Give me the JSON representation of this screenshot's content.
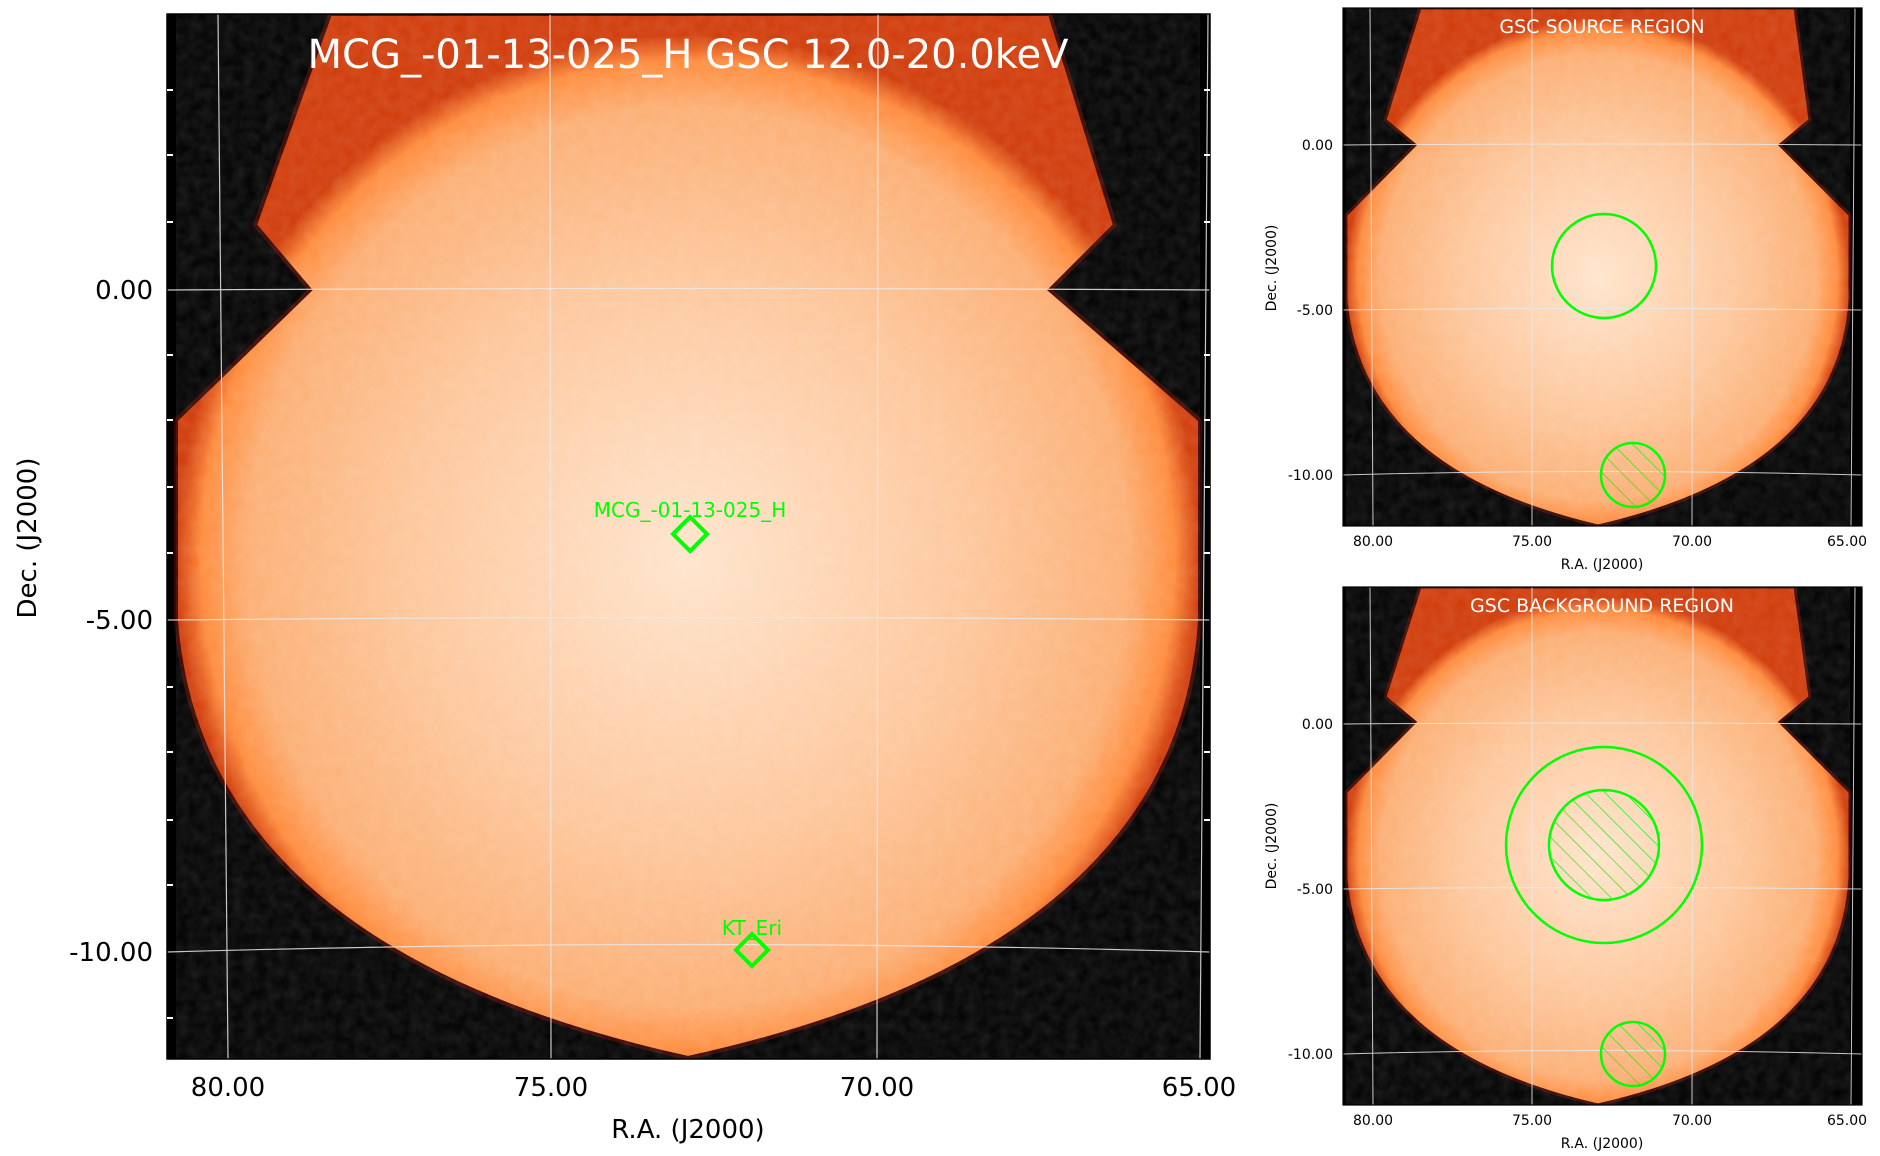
{
  "colors": {
    "background": "#ffffff",
    "sky": "#000000",
    "map_edge": "#3a0600",
    "map_rim": "#ff8a3a",
    "map_mid": "#fdb683",
    "map_center": "#ffe4cc",
    "grid": "#e9e9e9",
    "marker": "#00ff00",
    "title_text": "#ffffff",
    "axis_text": "#000000"
  },
  "main_panel": {
    "title": "MCG_-01-13-025_H GSC 12.0-20.0keV",
    "xlabel": "R.A. (J2000)",
    "ylabel": "Dec. (J2000)",
    "ra_ticks": [
      "80.00",
      "75.00",
      "70.00",
      "65.00"
    ],
    "dec_ticks": [
      "0.00",
      "-5.00",
      "-10.00"
    ],
    "sources": [
      {
        "name": "MCG_-01-13-025_H",
        "ra": 72.9,
        "dec": -3.7
      },
      {
        "name": "KT_Eri",
        "ra": 71.9,
        "dec": -10.0
      }
    ]
  },
  "source_panel": {
    "title": "GSC SOURCE REGION",
    "xlabel": "R.A. (J2000)",
    "ylabel": "Dec. (J2000)",
    "ra_ticks": [
      "80.00",
      "75.00",
      "70.00",
      "65.00"
    ],
    "dec_ticks": [
      "0.00",
      "-5.00",
      "-10.00"
    ],
    "regions": [
      {
        "kind": "source-circle",
        "ra": 72.3,
        "dec": -3.7,
        "radius_deg": 1.6,
        "excluded": false
      },
      {
        "kind": "excluded-circle",
        "ra": 71.8,
        "dec": -10.0,
        "radius_deg": 1.0,
        "excluded": true
      }
    ]
  },
  "background_panel": {
    "title": "GSC BACKGROUND REGION",
    "xlabel": "R.A. (J2000)",
    "ylabel": "Dec. (J2000)",
    "ra_ticks": [
      "80.00",
      "75.00",
      "70.00",
      "65.00"
    ],
    "dec_ticks": [
      "0.00",
      "-5.00",
      "-10.00"
    ],
    "regions": [
      {
        "kind": "background-annulus-outer",
        "ra": 72.3,
        "dec": -3.7,
        "radius_deg": 3.0,
        "excluded": false
      },
      {
        "kind": "excluded-source-circle",
        "ra": 72.3,
        "dec": -3.7,
        "radius_deg": 1.7,
        "excluded": true
      },
      {
        "kind": "excluded-circle",
        "ra": 71.8,
        "dec": -10.0,
        "radius_deg": 1.0,
        "excluded": true
      }
    ]
  }
}
